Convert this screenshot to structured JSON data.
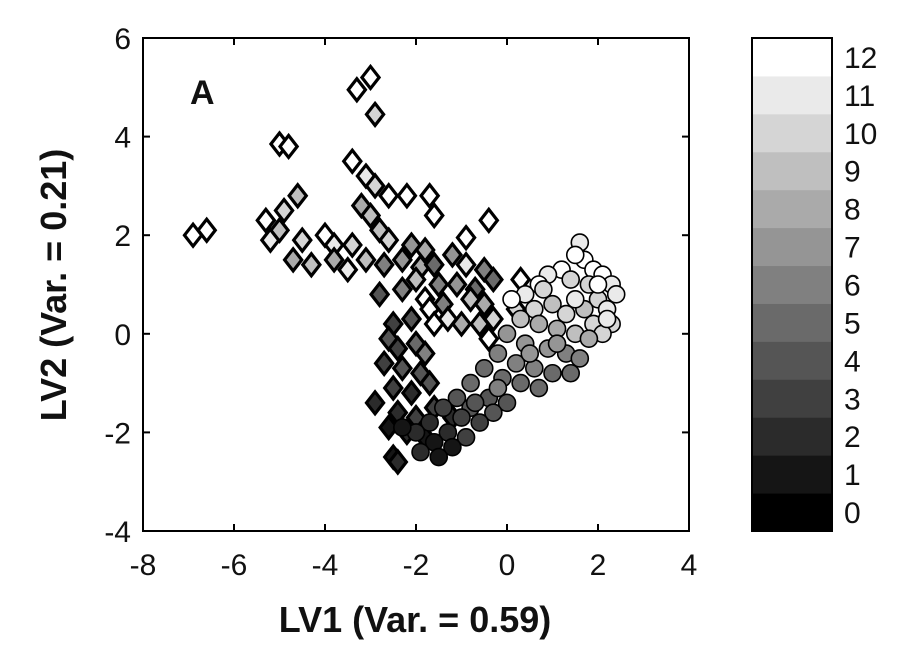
{
  "chart_data": {
    "type": "scatter",
    "panel_label": "A",
    "xlabel": "LV1  (Var. = 0.59)",
    "ylabel": "LV2  (Var. = 0.21)",
    "xlim": [
      -8,
      4
    ],
    "ylim": [
      -4,
      6
    ],
    "xticks": [
      "-8",
      "-6",
      "-4",
      "-2",
      "0",
      "2",
      "4"
    ],
    "yticks": [
      "-4",
      "-2",
      "0",
      "2",
      "4",
      "6"
    ],
    "grid": false,
    "colorbar": {
      "min": 0,
      "max": 12,
      "ticks": [
        "0",
        "1",
        "2",
        "3",
        "4",
        "5",
        "6",
        "7",
        "8",
        "9",
        "10",
        "11",
        "12"
      ],
      "colormap": "gray"
    },
    "series": [
      {
        "marker": "diamond",
        "points": [
          [
            -3.0,
            5.2,
            12
          ],
          [
            -3.3,
            4.95,
            12
          ],
          [
            -2.9,
            4.45,
            10
          ],
          [
            -5.0,
            3.85,
            12
          ],
          [
            -4.8,
            3.8,
            12
          ],
          [
            -3.4,
            3.5,
            12
          ],
          [
            -3.1,
            3.2,
            11
          ],
          [
            -2.9,
            3.0,
            10
          ],
          [
            -2.6,
            2.8,
            12
          ],
          [
            -2.2,
            2.8,
            12
          ],
          [
            -1.7,
            2.8,
            12
          ],
          [
            -1.6,
            2.4,
            12
          ],
          [
            -0.4,
            2.3,
            12
          ],
          [
            -3.2,
            2.6,
            8
          ],
          [
            -3.0,
            2.4,
            9
          ],
          [
            -4.6,
            2.8,
            9
          ],
          [
            -4.9,
            2.5,
            10
          ],
          [
            -5.3,
            2.3,
            12
          ],
          [
            -6.9,
            2.0,
            12
          ],
          [
            -6.6,
            2.1,
            12
          ],
          [
            -5.2,
            1.9,
            11
          ],
          [
            -5.0,
            2.1,
            9
          ],
          [
            -4.5,
            1.9,
            10
          ],
          [
            -4.0,
            2.0,
            12
          ],
          [
            -3.8,
            1.8,
            11
          ],
          [
            -3.4,
            1.8,
            10
          ],
          [
            -2.8,
            2.1,
            9
          ],
          [
            -2.6,
            1.9,
            10
          ],
          [
            -2.1,
            1.8,
            7
          ],
          [
            -1.8,
            1.7,
            8
          ],
          [
            -0.9,
            1.95,
            12
          ],
          [
            -4.7,
            1.5,
            8
          ],
          [
            -4.3,
            1.4,
            9
          ],
          [
            -3.8,
            1.5,
            8
          ],
          [
            -3.5,
            1.3,
            11
          ],
          [
            -3.1,
            1.5,
            9
          ],
          [
            -2.7,
            1.4,
            6
          ],
          [
            -2.3,
            1.5,
            7
          ],
          [
            -1.9,
            1.35,
            8
          ],
          [
            -1.6,
            1.4,
            5
          ],
          [
            -1.2,
            1.6,
            7
          ],
          [
            -0.9,
            1.4,
            11
          ],
          [
            -0.5,
            1.3,
            6
          ],
          [
            -0.3,
            1.1,
            5
          ],
          [
            -2.0,
            1.1,
            9
          ],
          [
            -1.5,
            1.0,
            6
          ],
          [
            -1.1,
            1.0,
            7
          ],
          [
            -0.7,
            0.9,
            5
          ],
          [
            -2.8,
            0.8,
            4
          ],
          [
            -2.3,
            0.9,
            6
          ],
          [
            -1.8,
            0.7,
            12
          ],
          [
            -1.4,
            0.6,
            6
          ],
          [
            -0.8,
            0.7,
            9
          ],
          [
            -0.5,
            0.6,
            8
          ],
          [
            0.3,
            1.1,
            12
          ],
          [
            0.2,
            0.5,
            10
          ],
          [
            -2.5,
            0.2,
            3
          ],
          [
            -2.1,
            0.3,
            4
          ],
          [
            -1.7,
            0.5,
            12
          ],
          [
            -1.6,
            0.2,
            12
          ],
          [
            -1.3,
            0.3,
            11
          ],
          [
            -1.0,
            0.2,
            8
          ],
          [
            -0.6,
            0.2,
            9
          ],
          [
            -0.3,
            0.3,
            10
          ],
          [
            -0.4,
            -0.1,
            12
          ],
          [
            -2.6,
            -0.1,
            4
          ],
          [
            -2.4,
            -0.3,
            3
          ],
          [
            -2.0,
            -0.2,
            5
          ],
          [
            -1.8,
            -0.4,
            6
          ],
          [
            -2.7,
            -0.6,
            3
          ],
          [
            -2.3,
            -0.7,
            4
          ],
          [
            -1.9,
            -0.8,
            4
          ],
          [
            -2.5,
            -1.1,
            3
          ],
          [
            -2.1,
            -1.2,
            2
          ],
          [
            -1.7,
            -1.0,
            4
          ],
          [
            -2.9,
            -1.4,
            2
          ],
          [
            -2.4,
            -1.6,
            2
          ],
          [
            -2.0,
            -1.7,
            3
          ],
          [
            -1.6,
            -1.5,
            3
          ],
          [
            -2.6,
            -1.9,
            1
          ],
          [
            -2.2,
            -2.0,
            2
          ],
          [
            -1.8,
            -2.1,
            1
          ],
          [
            -2.5,
            -2.5,
            1
          ],
          [
            -2.4,
            -2.6,
            2
          ],
          [
            -1.2,
            -1.7,
            2
          ]
        ]
      },
      {
        "marker": "circle",
        "points": [
          [
            1.6,
            1.85,
            11
          ],
          [
            1.7,
            1.5,
            12
          ],
          [
            1.5,
            1.6,
            12
          ],
          [
            1.9,
            1.3,
            12
          ],
          [
            2.1,
            1.2,
            12
          ],
          [
            2.3,
            1.0,
            11
          ],
          [
            2.4,
            0.8,
            11
          ],
          [
            1.2,
            1.3,
            12
          ],
          [
            0.9,
            1.2,
            11
          ],
          [
            0.7,
            1.0,
            12
          ],
          [
            1.4,
            1.1,
            10
          ],
          [
            1.8,
            1.0,
            10
          ],
          [
            2.0,
            0.7,
            10
          ],
          [
            2.2,
            0.5,
            11
          ],
          [
            2.3,
            0.2,
            10
          ],
          [
            0.4,
            0.8,
            11
          ],
          [
            0.1,
            0.7,
            12
          ],
          [
            0.6,
            0.5,
            10
          ],
          [
            1.0,
            0.6,
            9
          ],
          [
            1.3,
            0.4,
            10
          ],
          [
            1.7,
            0.5,
            9
          ],
          [
            1.9,
            0.2,
            10
          ],
          [
            2.1,
            0.0,
            10
          ],
          [
            0.3,
            0.3,
            9
          ],
          [
            0.7,
            0.2,
            8
          ],
          [
            1.1,
            0.1,
            8
          ],
          [
            1.5,
            0.0,
            9
          ],
          [
            1.8,
            -0.1,
            8
          ],
          [
            0.0,
            0.0,
            7
          ],
          [
            0.4,
            -0.2,
            7
          ],
          [
            0.9,
            -0.3,
            7
          ],
          [
            1.3,
            -0.4,
            6
          ],
          [
            1.6,
            -0.5,
            6
          ],
          [
            -0.2,
            -0.4,
            6
          ],
          [
            0.2,
            -0.6,
            6
          ],
          [
            0.6,
            -0.7,
            6
          ],
          [
            1.0,
            -0.8,
            5
          ],
          [
            1.4,
            -0.8,
            5
          ],
          [
            -0.5,
            -0.7,
            5
          ],
          [
            -0.1,
            -0.9,
            5
          ],
          [
            0.3,
            -1.0,
            5
          ],
          [
            0.7,
            -1.1,
            5
          ],
          [
            -0.8,
            -1.0,
            5
          ],
          [
            -0.4,
            -1.3,
            4
          ],
          [
            0.0,
            -1.4,
            4
          ],
          [
            -1.1,
            -1.3,
            4
          ],
          [
            -0.8,
            -1.5,
            4
          ],
          [
            -0.3,
            -1.6,
            4
          ],
          [
            -1.4,
            -1.5,
            3
          ],
          [
            -1.0,
            -1.7,
            3
          ],
          [
            -0.6,
            -1.8,
            3
          ],
          [
            -1.7,
            -1.8,
            2
          ],
          [
            -1.3,
            -2.0,
            2
          ],
          [
            -0.9,
            -2.1,
            3
          ],
          [
            -2.0,
            -2.0,
            2
          ],
          [
            -1.6,
            -2.2,
            1
          ],
          [
            -1.2,
            -2.3,
            1
          ],
          [
            -2.3,
            -1.9,
            1
          ],
          [
            -1.9,
            -2.4,
            2
          ],
          [
            -1.5,
            -2.5,
            1
          ],
          [
            -0.7,
            -1.4,
            4
          ],
          [
            -0.2,
            -1.1,
            6
          ],
          [
            0.5,
            -0.4,
            7
          ],
          [
            1.1,
            -0.2,
            7
          ],
          [
            0.8,
            0.9,
            10
          ],
          [
            1.5,
            0.7,
            11
          ],
          [
            2.0,
            1.0,
            12
          ],
          [
            2.2,
            0.3,
            11
          ]
        ]
      }
    ]
  }
}
